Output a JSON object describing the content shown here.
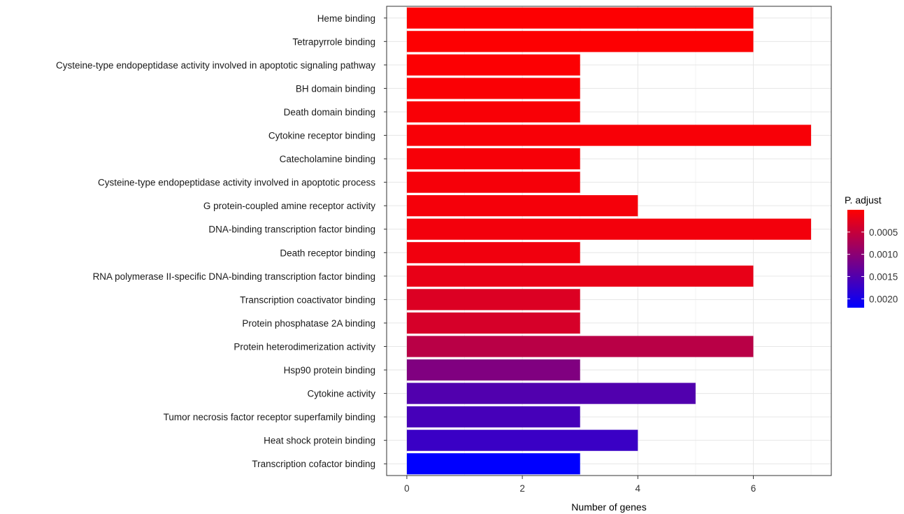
{
  "chart_data": {
    "type": "bar",
    "orientation": "horizontal",
    "categories": [
      "Heme binding",
      "Tetrapyrrole binding",
      "Cysteine-type endopeptidase activity involved in apoptotic signaling pathway",
      "BH domain binding",
      "Death domain binding",
      "Cytokine receptor binding",
      "Catecholamine binding",
      "Cysteine-type endopeptidase activity involved in apoptotic process",
      "G protein-coupled amine receptor activity",
      "DNA-binding transcription factor binding",
      "Death receptor binding",
      "RNA polymerase II-specific DNA-binding transcription factor binding",
      "Transcription coactivator binding",
      "Protein phosphatase 2A binding",
      "Protein heterodimerization activity",
      "Hsp90 protein binding",
      "Cytokine activity",
      "Tumor necrosis factor receptor superfamily binding",
      "Heat shock protein binding",
      "Transcription cofactor binding"
    ],
    "values": [
      6,
      6,
      3,
      3,
      3,
      7,
      3,
      3,
      4,
      7,
      3,
      6,
      3,
      3,
      6,
      3,
      5,
      3,
      4,
      3
    ],
    "p_adjust": [
      2e-05,
      2e-05,
      3e-05,
      4e-05,
      5e-05,
      6e-05,
      7e-05,
      8e-05,
      9e-05,
      0.0001,
      0.00012,
      0.0002,
      0.0003,
      0.00035,
      0.0006,
      0.0011,
      0.0015,
      0.0016,
      0.0017,
      0.0022
    ],
    "xlabel": "Number of genes",
    "ylabel": "",
    "xlim": [
      -0.35,
      7.35
    ],
    "xticks": [
      0,
      2,
      4,
      6
    ],
    "xtick_labels": [
      "0",
      "2",
      "4",
      "6"
    ],
    "grid": true,
    "legend": {
      "title": "P. adjust",
      "position": "right",
      "type": "colorbar",
      "range": [
        0.0,
        0.0022
      ],
      "ticks": [
        0.0005,
        0.001,
        0.0015,
        0.002
      ],
      "tick_labels": [
        "0.0005",
        "0.0010",
        "0.0015",
        "0.0020"
      ],
      "low_color": "#ff0000",
      "high_color": "#0000ff"
    }
  }
}
